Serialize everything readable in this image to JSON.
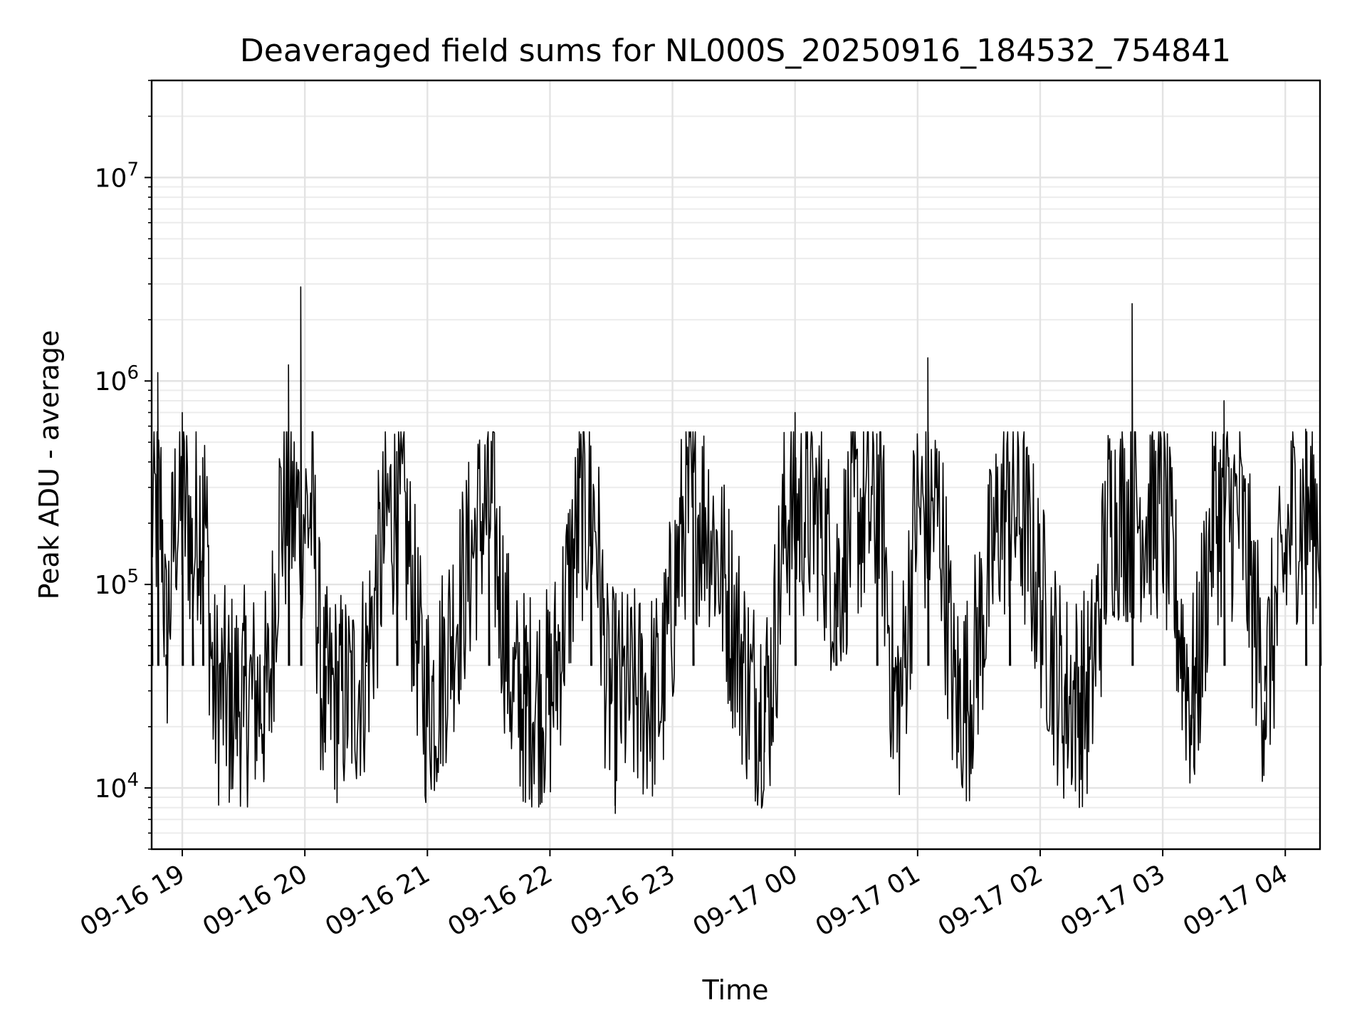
{
  "chart_data": {
    "type": "line",
    "title": "Deaveraged field sums for NL000S_20250916_184532_754841",
    "xlabel": "Time",
    "ylabel": "Peak ADU - average",
    "yscale": "log",
    "ylim": [
      5000,
      30000000
    ],
    "xlim": [
      "2025-09-16 18:45",
      "2025-09-17 04:17"
    ],
    "grid": true,
    "line_color": "#000000",
    "x_ticks": [
      {
        "label": "09-16 19",
        "value": "2025-09-16 19:00"
      },
      {
        "label": "09-16 20",
        "value": "2025-09-16 20:00"
      },
      {
        "label": "09-16 21",
        "value": "2025-09-16 21:00"
      },
      {
        "label": "09-16 22",
        "value": "2025-09-16 22:00"
      },
      {
        "label": "09-16 23",
        "value": "2025-09-16 23:00"
      },
      {
        "label": "09-17 00",
        "value": "2025-09-17 00:00"
      },
      {
        "label": "09-17 01",
        "value": "2025-09-17 01:00"
      },
      {
        "label": "09-17 02",
        "value": "2025-09-17 02:00"
      },
      {
        "label": "09-17 03",
        "value": "2025-09-17 03:00"
      },
      {
        "label": "09-17 04",
        "value": "2025-09-17 04:00"
      }
    ],
    "y_ticks": [
      {
        "base": "10",
        "exp": "4",
        "value": 10000
      },
      {
        "base": "10",
        "exp": "5",
        "value": 100000
      },
      {
        "base": "10",
        "exp": "6",
        "value": 1000000
      },
      {
        "base": "10",
        "exp": "7",
        "value": 10000000
      }
    ],
    "series": [
      {
        "points": [
          {
            "t": "2025-09-16 18:45",
            "v": 350000
          },
          {
            "t": "2025-09-16 18:48",
            "v": 1100000
          },
          {
            "t": "2025-09-16 18:52",
            "v": 45000
          },
          {
            "t": "2025-09-16 19:00",
            "v": 700000
          },
          {
            "t": "2025-09-16 19:05",
            "v": 120000
          },
          {
            "t": "2025-09-16 19:10",
            "v": 420000
          },
          {
            "t": "2025-09-16 19:15",
            "v": 30000
          },
          {
            "t": "2025-09-16 19:23",
            "v": 8500
          },
          {
            "t": "2025-09-16 19:30",
            "v": 20000
          },
          {
            "t": "2025-09-16 19:40",
            "v": 11000
          },
          {
            "t": "2025-09-16 19:52",
            "v": 1200000
          },
          {
            "t": "2025-09-16 19:58",
            "v": 2900000
          },
          {
            "t": "2025-09-16 20:10",
            "v": 15000
          },
          {
            "t": "2025-09-16 20:30",
            "v": 40000
          },
          {
            "t": "2025-09-16 20:45",
            "v": 450000
          },
          {
            "t": "2025-09-16 21:00",
            "v": 20000
          },
          {
            "t": "2025-09-16 21:30",
            "v": 300000
          },
          {
            "t": "2025-09-16 21:48",
            "v": 8500
          },
          {
            "t": "2025-09-16 22:00",
            "v": 25000
          },
          {
            "t": "2025-09-16 22:20",
            "v": 480000
          },
          {
            "t": "2025-09-16 22:32",
            "v": 7500
          },
          {
            "t": "2025-09-16 22:50",
            "v": 14000
          },
          {
            "t": "2025-09-16 23:10",
            "v": 450000
          },
          {
            "t": "2025-09-16 23:45",
            "v": 15000
          },
          {
            "t": "2025-09-17 00:00",
            "v": 700000
          },
          {
            "t": "2025-09-17 00:20",
            "v": 100000
          },
          {
            "t": "2025-09-17 00:40",
            "v": 550000
          },
          {
            "t": "2025-09-17 00:50",
            "v": 15000
          },
          {
            "t": "2025-09-17 01:05",
            "v": 1300000
          },
          {
            "t": "2025-09-17 01:20",
            "v": 15000
          },
          {
            "t": "2025-09-17 01:45",
            "v": 400000
          },
          {
            "t": "2025-09-17 02:20",
            "v": 11000
          },
          {
            "t": "2025-09-17 02:45",
            "v": 2400000
          },
          {
            "t": "2025-09-17 03:15",
            "v": 22000
          },
          {
            "t": "2025-09-17 03:30",
            "v": 800000
          },
          {
            "t": "2025-09-17 03:50",
            "v": 30000
          },
          {
            "t": "2025-09-17 04:10",
            "v": 580000
          },
          {
            "t": "2025-09-17 04:17",
            "v": 300000
          }
        ]
      }
    ]
  }
}
